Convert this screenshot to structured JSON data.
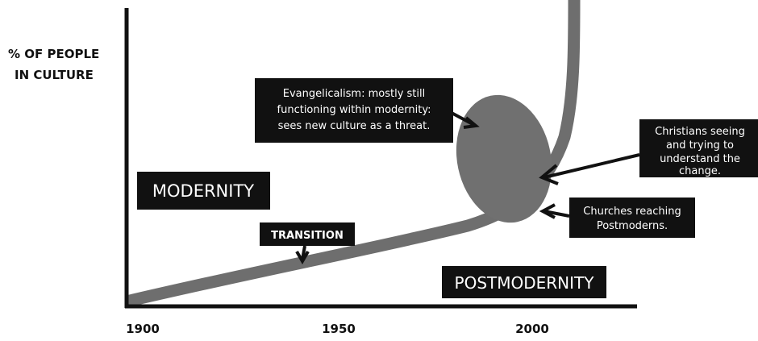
{
  "y_label": [
    "% OF PEOPLE",
    "IN CULTURE"
  ],
  "x_labels": [
    "1900",
    "1950",
    "2000"
  ],
  "labels": {
    "modernity": "MODERNITY",
    "transition": "TRANSITION",
    "postmodernity": "POSTMODERNITY",
    "evangelicalism": [
      "Evangelicalism: mostly still",
      "functioning within modernity:",
      "sees new culture as a threat."
    ],
    "christians": [
      "Christians seeing",
      "and trying to",
      "understand the",
      "change."
    ],
    "churches": [
      "Churches reaching",
      "Postmoderns."
    ]
  }
}
